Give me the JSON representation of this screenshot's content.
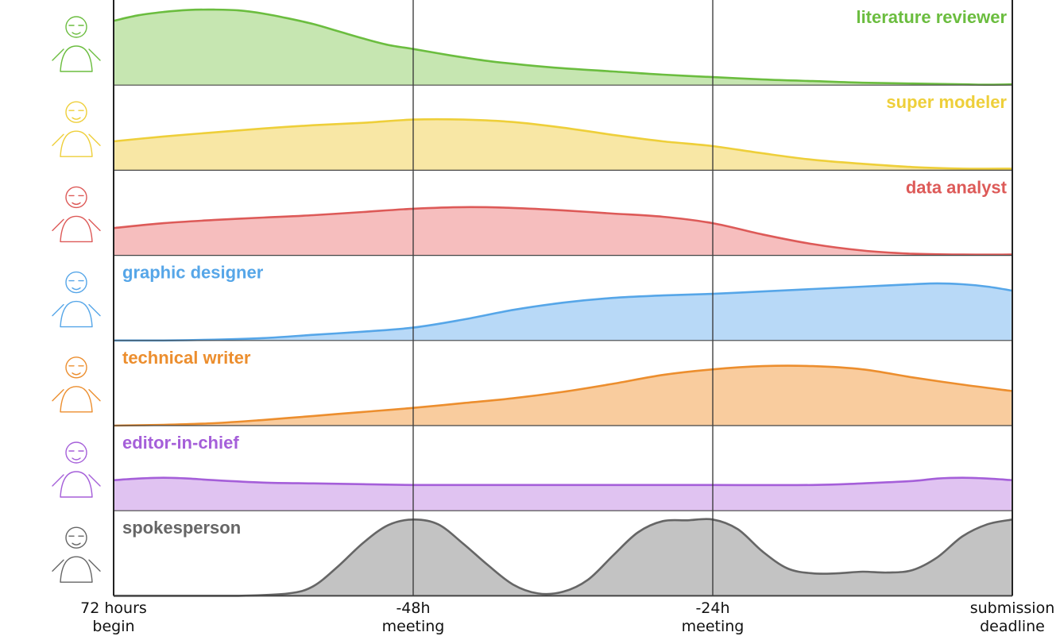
{
  "chart_data": {
    "type": "area",
    "x_ticks": [
      {
        "hours": 0,
        "lines": [
          "72 hours",
          "begin"
        ]
      },
      {
        "hours": 24,
        "lines": [
          "-48h",
          "meeting"
        ]
      },
      {
        "hours": 48,
        "lines": [
          "-24h",
          "meeting"
        ]
      },
      {
        "hours": 72,
        "lines": [
          "submission",
          "deadline"
        ]
      }
    ],
    "x_range": [
      0,
      72
    ],
    "y_range": [
      0,
      1
    ],
    "grid": "vertical lines at x ticks",
    "series": [
      {
        "name": "literature reviewer",
        "color": "#6bbd3f",
        "fill": "#c6e6b1",
        "label_align": "right",
        "x": [
          0,
          2,
          4,
          6,
          8,
          10,
          12,
          14,
          16,
          18,
          20,
          22,
          24,
          27,
          30,
          33,
          36,
          40,
          44,
          48,
          52,
          56,
          60,
          64,
          68,
          70,
          72
        ],
        "y": [
          0.8,
          0.87,
          0.91,
          0.935,
          0.94,
          0.93,
          0.89,
          0.83,
          0.76,
          0.67,
          0.58,
          0.5,
          0.45,
          0.37,
          0.3,
          0.25,
          0.21,
          0.17,
          0.13,
          0.1,
          0.07,
          0.05,
          0.03,
          0.02,
          0.01,
          0.005,
          0.01
        ]
      },
      {
        "name": "super modeler",
        "color": "#eecf3a",
        "fill": "#f8e7a5",
        "label_align": "right",
        "x": [
          0,
          4,
          8,
          12,
          16,
          20,
          24,
          28,
          32,
          36,
          40,
          44,
          48,
          52,
          56,
          60,
          64,
          68,
          72
        ],
        "y": [
          0.36,
          0.42,
          0.47,
          0.52,
          0.56,
          0.59,
          0.63,
          0.63,
          0.6,
          0.53,
          0.44,
          0.36,
          0.3,
          0.21,
          0.13,
          0.08,
          0.04,
          0.02,
          0.02
        ]
      },
      {
        "name": "data analyst",
        "color": "#dd5a58",
        "fill": "#f6bebe",
        "label_align": "right",
        "x": [
          0,
          4,
          8,
          12,
          16,
          20,
          24,
          28,
          32,
          36,
          40,
          44,
          48,
          52,
          56,
          60,
          64,
          68,
          72
        ],
        "y": [
          0.34,
          0.4,
          0.44,
          0.47,
          0.5,
          0.54,
          0.58,
          0.6,
          0.59,
          0.56,
          0.52,
          0.48,
          0.4,
          0.26,
          0.14,
          0.06,
          0.02,
          0.01,
          0.01
        ]
      },
      {
        "name": "graphic designer",
        "color": "#56a6e8",
        "fill": "#b8d9f7",
        "label_align": "left",
        "x": [
          0,
          4,
          8,
          12,
          16,
          20,
          24,
          28,
          32,
          36,
          40,
          44,
          48,
          52,
          56,
          60,
          64,
          66,
          68,
          70,
          72
        ],
        "y": [
          0.0,
          0.0,
          0.01,
          0.03,
          0.07,
          0.11,
          0.16,
          0.26,
          0.38,
          0.47,
          0.53,
          0.56,
          0.58,
          0.61,
          0.64,
          0.67,
          0.7,
          0.71,
          0.7,
          0.67,
          0.62
        ]
      },
      {
        "name": "technical writer",
        "color": "#ec8e2e",
        "fill": "#f9cc9e",
        "label_align": "left",
        "x": [
          0,
          4,
          8,
          12,
          16,
          20,
          24,
          28,
          32,
          36,
          40,
          44,
          48,
          52,
          56,
          60,
          64,
          68,
          72
        ],
        "y": [
          0.0,
          0.01,
          0.03,
          0.07,
          0.12,
          0.17,
          0.22,
          0.28,
          0.34,
          0.42,
          0.52,
          0.63,
          0.7,
          0.74,
          0.74,
          0.7,
          0.6,
          0.51,
          0.43
        ]
      },
      {
        "name": "editor-in-chief",
        "color": "#a55fd9",
        "fill": "#e0c3f1",
        "label_align": "left",
        "x": [
          0,
          2,
          4,
          6,
          8,
          12,
          16,
          20,
          24,
          32,
          40,
          48,
          56,
          60,
          64,
          66,
          68,
          70,
          72
        ],
        "y": [
          0.38,
          0.4,
          0.41,
          0.4,
          0.38,
          0.35,
          0.34,
          0.33,
          0.32,
          0.32,
          0.32,
          0.32,
          0.32,
          0.34,
          0.37,
          0.4,
          0.41,
          0.4,
          0.38
        ]
      },
      {
        "name": "spokesperson",
        "color": "#666666",
        "fill": "#c3c3c3",
        "label_align": "left",
        "x": [
          0,
          6,
          10,
          14,
          16,
          18,
          20,
          22,
          24,
          26,
          28,
          30,
          32,
          34,
          36,
          38,
          40,
          42,
          44,
          46,
          48,
          50,
          52,
          54,
          56,
          58,
          60,
          62,
          64,
          66,
          68,
          70,
          72
        ],
        "y": [
          0.0,
          0.0,
          0.0,
          0.03,
          0.12,
          0.37,
          0.66,
          0.88,
          0.95,
          0.89,
          0.65,
          0.38,
          0.14,
          0.03,
          0.05,
          0.2,
          0.5,
          0.79,
          0.93,
          0.94,
          0.95,
          0.83,
          0.55,
          0.34,
          0.28,
          0.28,
          0.3,
          0.29,
          0.32,
          0.48,
          0.74,
          0.89,
          0.95
        ]
      }
    ]
  }
}
